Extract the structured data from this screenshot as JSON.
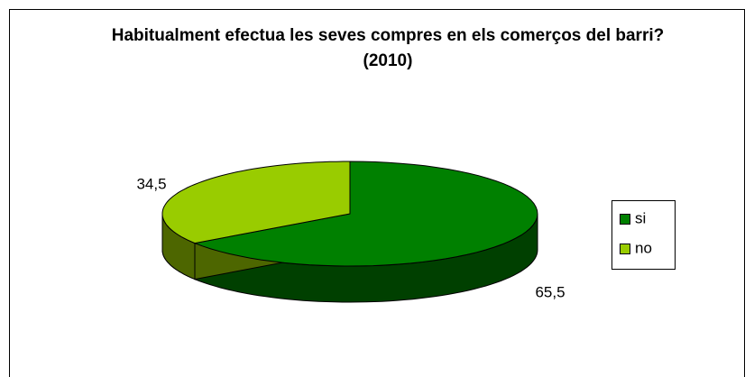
{
  "chart_data": {
    "type": "pie",
    "title": "Habitualment efectua les seves compres en els comerços del barri? (2010)",
    "categories": [
      "si",
      "no"
    ],
    "values": [
      65.5,
      34.5
    ],
    "value_labels": [
      "65,5",
      "34,5"
    ],
    "colors": [
      "#008000",
      "#99cc00"
    ],
    "side_colors": [
      "#004000",
      "#4d6600"
    ],
    "legend": "right"
  }
}
